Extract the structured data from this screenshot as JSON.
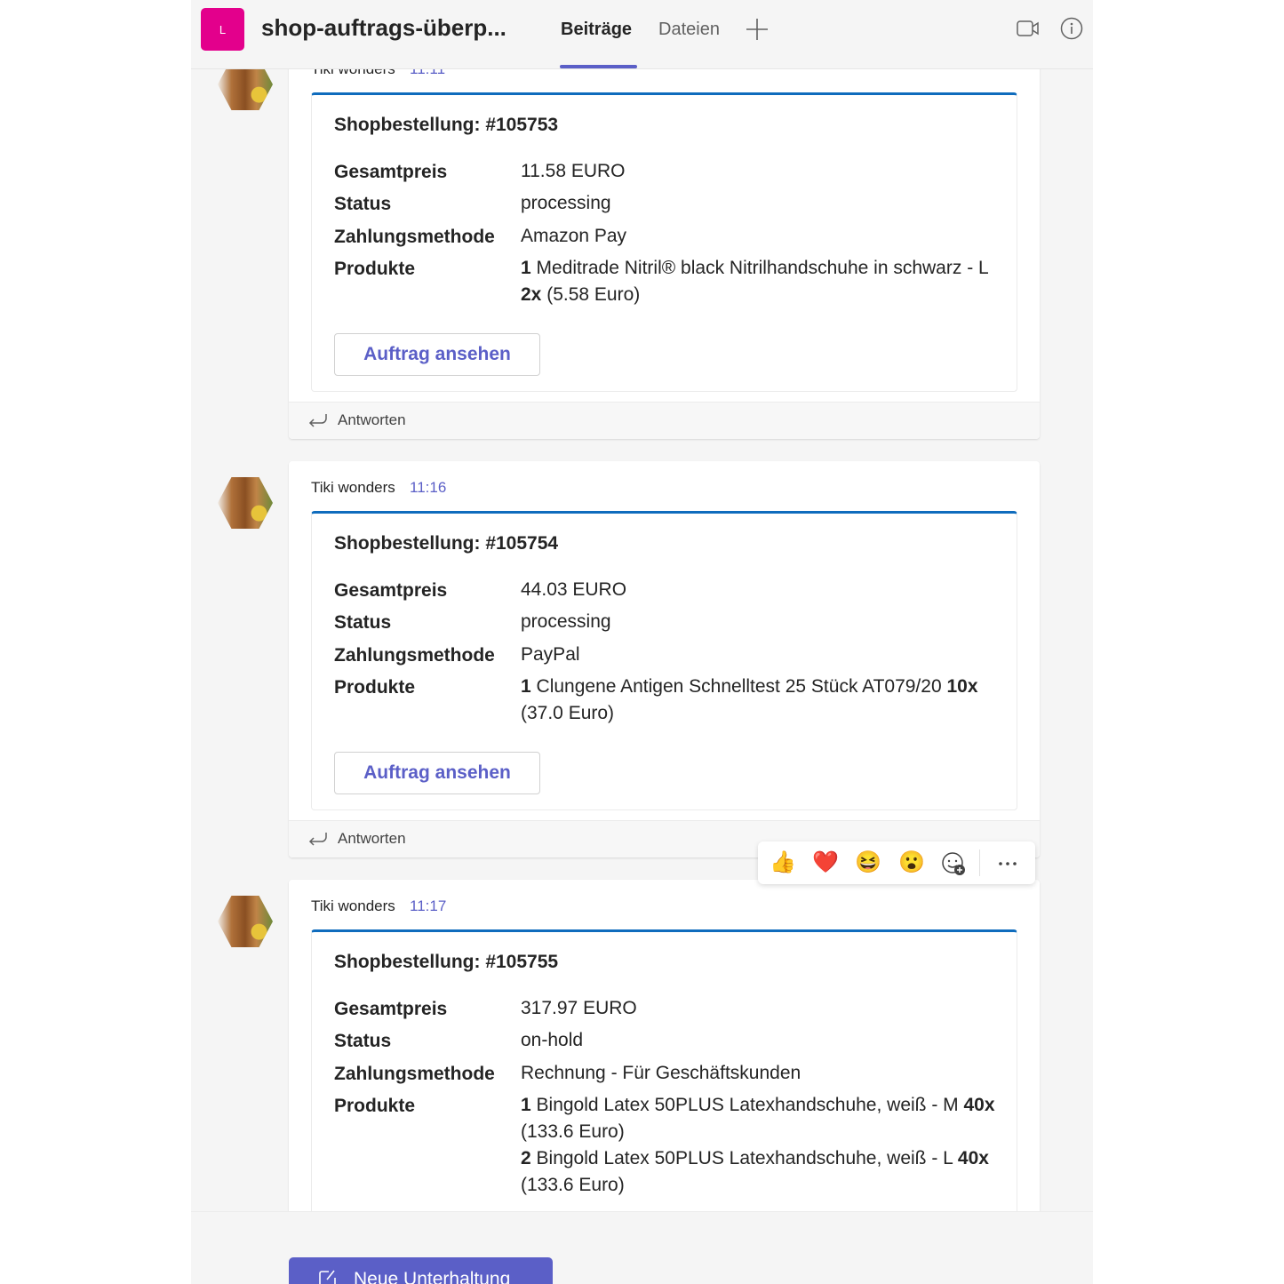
{
  "header": {
    "team_initial": "L",
    "channel_title": "shop-auftrags-überp...",
    "tabs": [
      {
        "label": "Beiträge",
        "active": true
      },
      {
        "label": "Dateien",
        "active": false
      }
    ],
    "add_tab_icon": "plus-icon",
    "icons": [
      "video-camera-icon",
      "info-icon"
    ],
    "accent": "#5b5fc7",
    "team_color": "#e3008c"
  },
  "messages": [
    {
      "author": "Tiki wonders",
      "time": "11:11",
      "order": "Shopbestellung: #105753",
      "fields": {
        "price_label": "Gesamtpreis",
        "price": "11.58 EURO",
        "status_label": "Status",
        "status": "processing",
        "payment_label": "Zahlungsmethode",
        "payment": "Amazon Pay",
        "products_label": "Produkte"
      },
      "products": [
        {
          "qty": "1",
          "name": "Meditrade Nitril® black Nitrilhandschuhe in schwarz - L",
          "count": "2x",
          "price": "(5.58 Euro)"
        }
      ],
      "button": "Auftrag ansehen",
      "reply": "Antworten"
    },
    {
      "author": "Tiki wonders",
      "time": "11:16",
      "order": "Shopbestellung: #105754",
      "fields": {
        "price_label": "Gesamtpreis",
        "price": "44.03 EURO",
        "status_label": "Status",
        "status": "processing",
        "payment_label": "Zahlungsmethode",
        "payment": "PayPal",
        "products_label": "Produkte"
      },
      "products": [
        {
          "qty": "1",
          "name": "Clungene Antigen Schnelltest 25 Stück AT079/20",
          "count": "10x",
          "price": "(37.0 Euro)"
        }
      ],
      "button": "Auftrag ansehen",
      "reply": "Antworten"
    },
    {
      "author": "Tiki wonders",
      "time": "11:17",
      "order": "Shopbestellung: #105755",
      "fields": {
        "price_label": "Gesamtpreis",
        "price": "317.97 EURO",
        "status_label": "Status",
        "status": "on-hold",
        "payment_label": "Zahlungsmethode",
        "payment": "Rechnung - Für Geschäftskunden",
        "products_label": "Produkte"
      },
      "products": [
        {
          "qty": "1",
          "name": "Bingold Latex 50PLUS Latexhandschuhe, weiß - M",
          "count": "40x",
          "price": "(133.6 Euro)"
        },
        {
          "qty": "2",
          "name": "Bingold Latex 50PLUS Latexhandschuhe, weiß - L",
          "count": "40x",
          "price": "(133.6 Euro)"
        }
      ]
    }
  ],
  "reactions": [
    "👍",
    "❤️",
    "😆",
    "😮"
  ],
  "reaction_icons": [
    "thumbs-up-icon",
    "heart-icon",
    "laugh-icon",
    "surprised-icon",
    "add-reaction-icon",
    "more-options-icon"
  ],
  "compose": {
    "new_conversation": "Neue Unterhaltung"
  }
}
